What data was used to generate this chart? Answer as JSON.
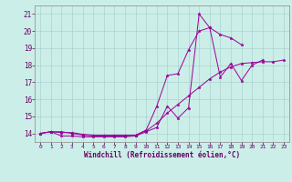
{
  "xlabel": "Windchill (Refroidissement éolien,°C)",
  "background_color": "#cceee8",
  "grid_color": "#aad4ce",
  "line_color": "#990099",
  "xlim": [
    -0.5,
    23.5
  ],
  "ylim": [
    13.5,
    21.5
  ],
  "yticks": [
    14,
    15,
    16,
    17,
    18,
    19,
    20,
    21
  ],
  "xticks": [
    0,
    1,
    2,
    3,
    4,
    5,
    6,
    7,
    8,
    9,
    10,
    11,
    12,
    13,
    14,
    15,
    16,
    17,
    18,
    19,
    20,
    21,
    22,
    23
  ],
  "series": [
    {
      "x": [
        0,
        1,
        2,
        3,
        4,
        5,
        6,
        7,
        8,
        9,
        10,
        11,
        12,
        13,
        14,
        15,
        16,
        17,
        18,
        19,
        20,
        21,
        22,
        23
      ],
      "y": [
        14.0,
        14.1,
        14.1,
        14.0,
        13.9,
        13.85,
        13.85,
        13.85,
        13.85,
        13.9,
        14.15,
        14.6,
        15.2,
        15.7,
        16.2,
        16.7,
        17.2,
        17.6,
        17.9,
        18.1,
        18.15,
        18.2,
        18.2,
        18.3
      ]
    },
    {
      "x": [
        0,
        1,
        2,
        3,
        4,
        5,
        6,
        7,
        8,
        9,
        10,
        11,
        12,
        13,
        14,
        15,
        16,
        17,
        18,
        19,
        20,
        21,
        22,
        23
      ],
      "y": [
        14.0,
        14.1,
        13.85,
        13.85,
        13.8,
        13.8,
        13.8,
        13.8,
        13.8,
        13.85,
        14.1,
        14.35,
        15.6,
        14.9,
        15.5,
        21.0,
        20.2,
        17.3,
        18.1,
        17.1,
        18.0,
        18.3,
        null,
        null
      ]
    },
    {
      "x": [
        0,
        1,
        2,
        3,
        4,
        5,
        6,
        7,
        8,
        9,
        10,
        11,
        12,
        13,
        14,
        15,
        16,
        17,
        18,
        19,
        20,
        21,
        22,
        23
      ],
      "y": [
        14.0,
        14.1,
        14.05,
        14.05,
        13.95,
        13.9,
        13.9,
        13.9,
        13.9,
        13.9,
        14.2,
        15.6,
        17.4,
        17.5,
        18.9,
        20.0,
        20.2,
        19.8,
        19.6,
        19.2,
        null,
        null,
        null,
        null
      ]
    }
  ]
}
